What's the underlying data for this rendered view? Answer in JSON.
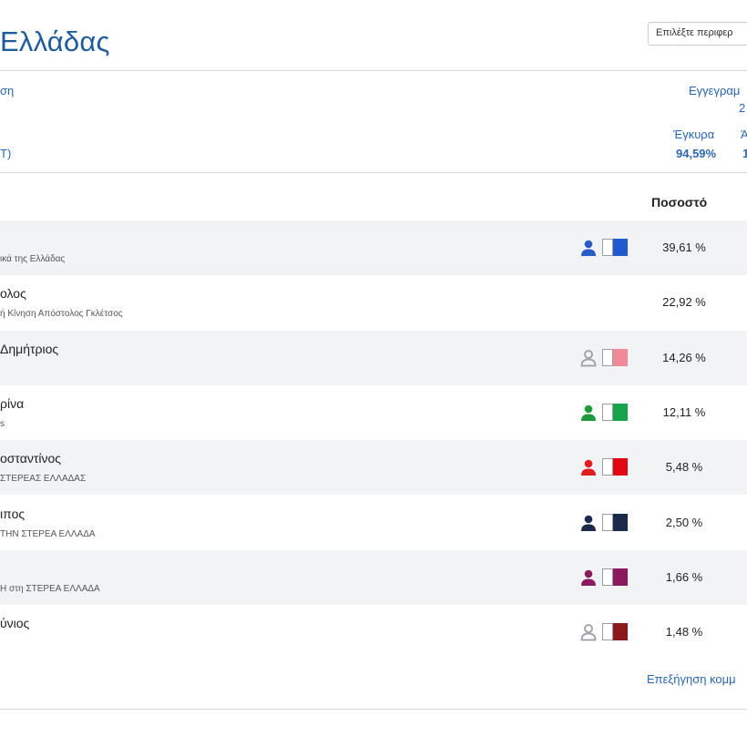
{
  "header": {
    "title": "Ελλάδας",
    "select_label": "Επιλέξτε περιφερ"
  },
  "summary": {
    "left_top": "ση",
    "left_bottom": "Τ)",
    "registered_label": "Εγγεγραμ",
    "registered_value": "2",
    "valid_label": "Έγκυρα",
    "valid_value": "94,59%",
    "extra_label": "Ά",
    "extra_value": "1"
  },
  "table": {
    "percent_header": "Ποσοστό",
    "rows": [
      {
        "name": "",
        "party": "ικά της Ελλάδας",
        "percent": "39,61 %",
        "person_color": "#2a5cc8",
        "party_color": "#1f5ad1",
        "shaded": true,
        "has_icons": true
      },
      {
        "name": "ολος",
        "party": "ή Κίνηση Απόστολος Γκλέτσος",
        "percent": "22,92 %",
        "person_color": "",
        "party_color": "",
        "shaded": false,
        "has_icons": false
      },
      {
        "name": "Δημήτριος",
        "party": "",
        "percent": "14,26 %",
        "person_color": "#9a9ea3",
        "party_color": "#f08a98",
        "shaded": true,
        "has_icons": true
      },
      {
        "name": "ρίνα",
        "party": "s",
        "percent": "12,11 %",
        "person_color": "#1f9a3c",
        "party_color": "#17a34a",
        "shaded": false,
        "has_icons": true
      },
      {
        "name": "οσταντίνος",
        "party": "ΣΤΕΡΕΑΣ ΕΛΛΑΔΑΣ",
        "percent": "5,48 %",
        "person_color": "#e11d1d",
        "party_color": "#e30613",
        "shaded": true,
        "has_icons": true
      },
      {
        "name": "ιπος",
        "party": "ΤΗΝ ΣΤΕΡΕΑ ΕΛΛΑΔΑ",
        "percent": "2,50 %",
        "person_color": "#1b2a4a",
        "party_color": "#1b2a4a",
        "shaded": false,
        "has_icons": true
      },
      {
        "name": "",
        "party": "Η στη ΣΤΕΡΕΑ ΕΛΛΑΔΑ",
        "percent": "1,66 %",
        "person_color": "#8c1a5e",
        "party_color": "#8c1a5e",
        "shaded": true,
        "has_icons": true
      },
      {
        "name": "ύνιος",
        "party": "",
        "percent": "1,48 %",
        "person_color": "#9a9ea3",
        "party_color": "#8b1a1a",
        "shaded": false,
        "has_icons": true
      }
    ]
  },
  "footer": {
    "explain_link": "Επεξήγηση κομμ"
  },
  "icons": {
    "person": "person-icon",
    "party_color": "party-color-icon"
  }
}
